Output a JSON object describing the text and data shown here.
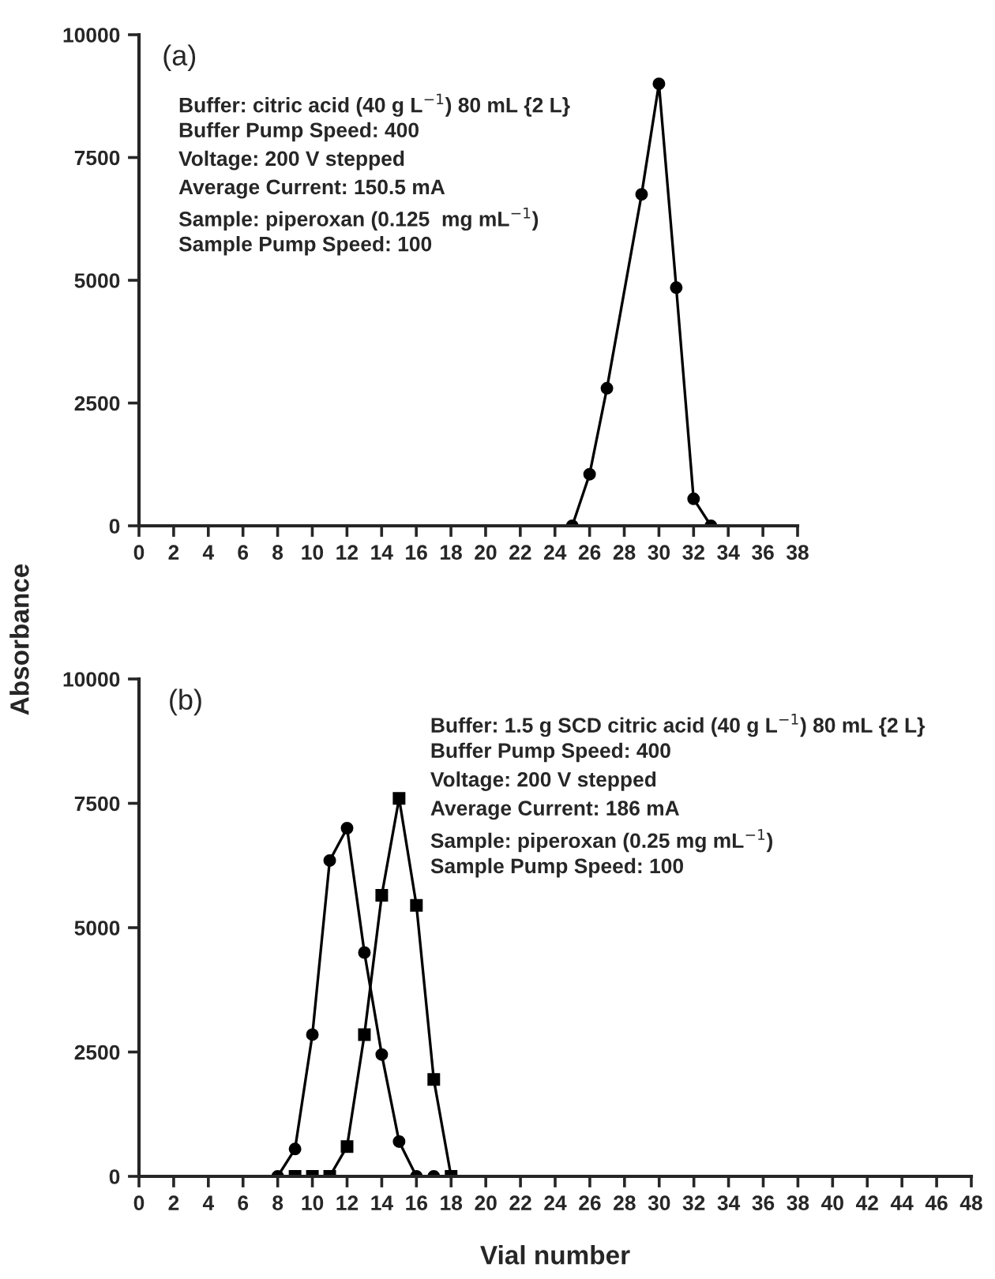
{
  "chart_data": [
    {
      "type": "line",
      "ylabel": "Absorbance",
      "xlim": [
        0,
        38
      ],
      "xticks": [
        0,
        2,
        4,
        6,
        8,
        10,
        12,
        14,
        16,
        18,
        20,
        22,
        24,
        26,
        28,
        30,
        32,
        34,
        36,
        38
      ],
      "ylim": [
        0,
        10000
      ],
      "yticks": [
        0,
        2500,
        5000,
        7500,
        10000
      ],
      "grid": false,
      "legend": false,
      "annotations": [
        "(a)",
        "Buffer: citric acid (40 g L$^{−1}$) 80 mL {2 L}",
        "Buffer Pump Speed: 400",
        "Voltage: 200 V stepped",
        "Average Current: 150.5 mA",
        "Sample: piperoxan (0.125  mg mL$^{−1}$)",
        "Sample Pump Speed: 100"
      ],
      "series": [
        {
          "color": "#000000",
          "marker": "circle",
          "x": [
            25,
            26,
            27,
            29,
            30,
            31,
            32,
            33
          ],
          "values": [
            0,
            1050,
            2800,
            6750,
            9000,
            4850,
            550,
            0
          ]
        }
      ]
    },
    {
      "type": "line",
      "xlabel": "Vial number",
      "xlim": [
        0,
        48
      ],
      "xticks": [
        0,
        2,
        4,
        6,
        8,
        10,
        12,
        14,
        16,
        18,
        20,
        22,
        24,
        26,
        28,
        30,
        32,
        34,
        36,
        38,
        40,
        42,
        44,
        46,
        48
      ],
      "ylim": [
        0,
        10000
      ],
      "yticks": [
        0,
        2500,
        5000,
        7500,
        10000
      ],
      "grid": false,
      "legend": false,
      "annotations": [
        "(b)",
        "Buffer: 1.5 g SCD citric acid (40 g L$^{−1}$) 80 mL {2 L}",
        "Buffer Pump Speed: 400",
        "Voltage: 200 V stepped",
        "Average Current: 186 mA",
        "Sample: piperoxan (0.25 mg mL$^{−1}$)",
        "Sample Pump Speed: 100"
      ],
      "series": [
        {
          "color": "#000000",
          "marker": "circle",
          "x": [
            8,
            9,
            10,
            11,
            12,
            13,
            14,
            15,
            16,
            17
          ],
          "values": [
            0,
            550,
            2850,
            6350,
            7000,
            4500,
            2450,
            700,
            0,
            0
          ]
        },
        {
          "color": "#000000",
          "marker": "square",
          "x": [
            9,
            10,
            11,
            12,
            13,
            14,
            15,
            16,
            17,
            18
          ],
          "values": [
            0,
            0,
            0,
            600,
            2850,
            5650,
            7600,
            5450,
            1950,
            0
          ]
        }
      ]
    }
  ]
}
